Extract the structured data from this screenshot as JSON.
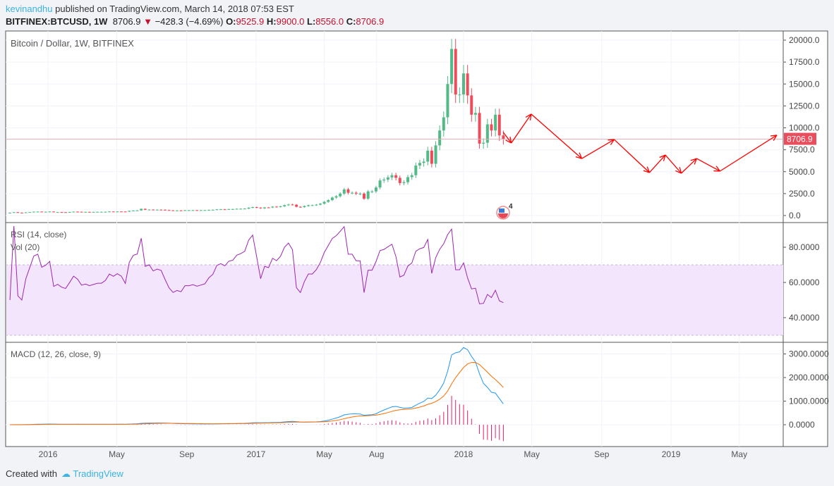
{
  "header": {
    "author": "kevinandhu",
    "published": "published on TradingView.com, March 14, 2018 07:53 EST",
    "symbol": "BITFINEX:BTCUSD, 1W",
    "last": "8706.9",
    "change": "−428.3 (−4.69%)",
    "o_label": "O:",
    "o": "9525.9",
    "h_label": "H:",
    "h": "9900.0",
    "l_label": "L:",
    "l": "8556.0",
    "c_label": "C:",
    "c": "8706.9"
  },
  "footer": {
    "created": "Created with",
    "brand": "TradingView"
  },
  "colors": {
    "up": "#53b987",
    "down": "#eb4d5c",
    "rsi": "#9c27b0",
    "macd": "#2196f3",
    "signal": "#ff6d00",
    "hist": "#e91e63",
    "drawing": "#ff0000"
  },
  "chart_data": [
    {
      "type": "candlestick",
      "title": "Bitcoin / Dollar, 1W, BITFINEX",
      "start_week": "2015-10-26",
      "ylim": [
        0,
        20000
      ],
      "yticks": [
        "0.0",
        "2500.0",
        "5000.0",
        "7500.0",
        "10000.0",
        "12500.0",
        "15000.0",
        "17500.0",
        "20000.0"
      ],
      "last_price_label": "8706.9",
      "last_price": 8706.9,
      "event_badge": "4",
      "closes": [
        325,
        380,
        330,
        325,
        360,
        390,
        435,
        445,
        420,
        430,
        450,
        380,
        390,
        380,
        375,
        405,
        440,
        430,
        410,
        415,
        410,
        415,
        420,
        420,
        430,
        455,
        450,
        460,
        455,
        440,
        530,
        575,
        585,
        760,
        660,
        675,
        650,
        665,
        660,
        625,
        590,
        570,
        580,
        575,
        605,
        605,
        610,
        605,
        610,
        615,
        640,
        655,
        700,
        710,
        705,
        730,
        735,
        765,
        775,
        790,
        890,
        960,
        900,
        820,
        920,
        915,
        1010,
        1000,
        1050,
        1180,
        1260,
        1230,
        1000,
        960,
        1080,
        1180,
        1180,
        1240,
        1350,
        1560,
        1760,
        2050,
        2200,
        2500,
        2980,
        2600,
        2600,
        2500,
        2500,
        1920,
        2750,
        2750,
        3200,
        4000,
        4100,
        4350,
        4600,
        4300,
        3700,
        3800,
        4380,
        4600,
        5700,
        6000,
        6150,
        7400,
        5900,
        8000,
        9700,
        11200,
        15000,
        19000,
        13800,
        13800,
        16200,
        13700,
        11500,
        11700,
        8200,
        8300,
        10400,
        9700,
        11500,
        9135,
        8707
      ],
      "forecast_drawing": [
        [
          "2018-03-12",
          9480
        ],
        [
          "2018-03-26",
          8270
        ],
        [
          "2018-04-30",
          11570
        ],
        [
          "2018-07-28",
          6500
        ],
        [
          "2018-09-23",
          8670
        ],
        [
          "2018-11-24",
          4900
        ],
        [
          "2018-12-22",
          6900
        ],
        [
          "2019-01-19",
          4820
        ],
        [
          "2019-02-15",
          6500
        ],
        [
          "2019-03-28",
          5060
        ],
        [
          "2019-07-06",
          9160
        ]
      ]
    },
    {
      "type": "line",
      "title": "RSI (14, close)",
      "subtitle": "Vol (20)",
      "ylim": [
        30,
        90
      ],
      "band": [
        30,
        70
      ],
      "yticks": [
        "40.0000",
        "60.0000",
        "80.0000"
      ]
    },
    {
      "type": "line",
      "title": "MACD (12, 26, close, 9)",
      "yticks": [
        "0.0000",
        "1000.0000",
        "2000.0000",
        "3000.0000"
      ]
    }
  ],
  "xaxis": {
    "ticks": [
      [
        "2016",
        "2016-01-01"
      ],
      [
        "May",
        "2016-05-01"
      ],
      [
        "Sep",
        "2016-09-01"
      ],
      [
        "2017",
        "2017-01-01"
      ],
      [
        "May",
        "2017-05-01"
      ],
      [
        "Aug",
        "2017-08-01"
      ],
      [
        "2018",
        "2018-01-01"
      ],
      [
        "May",
        "2018-05-01"
      ],
      [
        "Sep",
        "2018-09-01"
      ],
      [
        "2019",
        "2019-01-01"
      ],
      [
        "May",
        "2019-05-01"
      ]
    ]
  }
}
